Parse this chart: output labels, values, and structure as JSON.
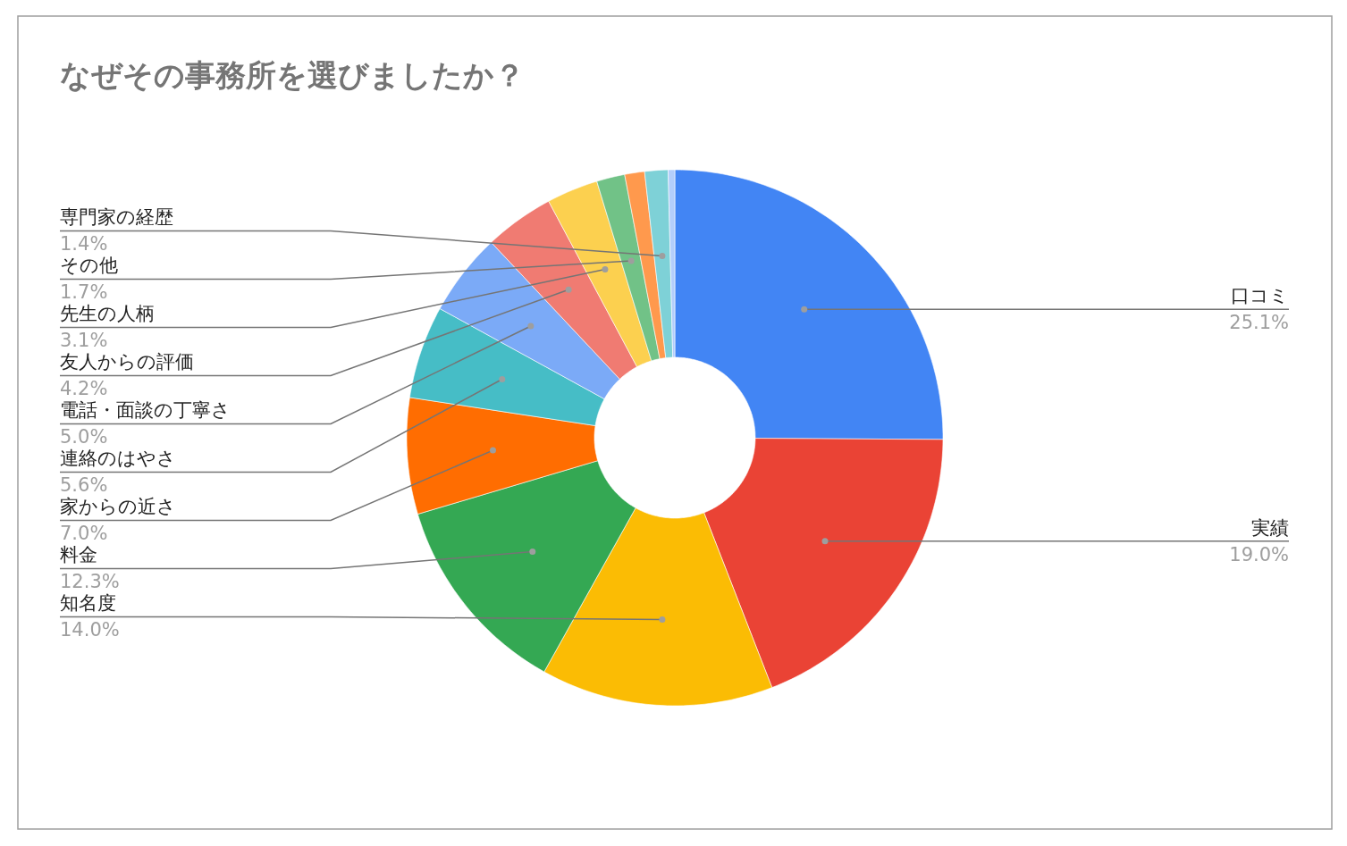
{
  "chart_data": {
    "type": "donut",
    "title": "なぜその事務所を選びましたか？",
    "categories": [
      "口コミ",
      "実績",
      "知名度",
      "料金",
      "家からの近さ",
      "連絡のはやさ",
      "電話・面談の丁寧さ",
      "友人からの評価",
      "先生の人柄",
      "その他",
      null,
      "専門家の経歴",
      null
    ],
    "values": [
      25.1,
      19.0,
      14.0,
      12.3,
      7.0,
      5.6,
      5.0,
      4.2,
      3.1,
      1.7,
      1.2,
      1.4,
      0.4
    ],
    "value_labels": [
      "25.1%",
      "19.0%",
      "14.0%",
      "12.3%",
      "7.0%",
      "5.6%",
      "5.0%",
      "4.2%",
      "3.1%",
      "1.7%",
      null,
      "1.4%",
      null
    ],
    "colors": [
      "#4285f4",
      "#ea4335",
      "#fbbc04",
      "#34a853",
      "#ff6d01",
      "#46bdc6",
      "#7baaf7",
      "#f07b72",
      "#fcd04f",
      "#71c287",
      "#ff994d",
      "#7ed1d7",
      "#b3cefb"
    ]
  }
}
